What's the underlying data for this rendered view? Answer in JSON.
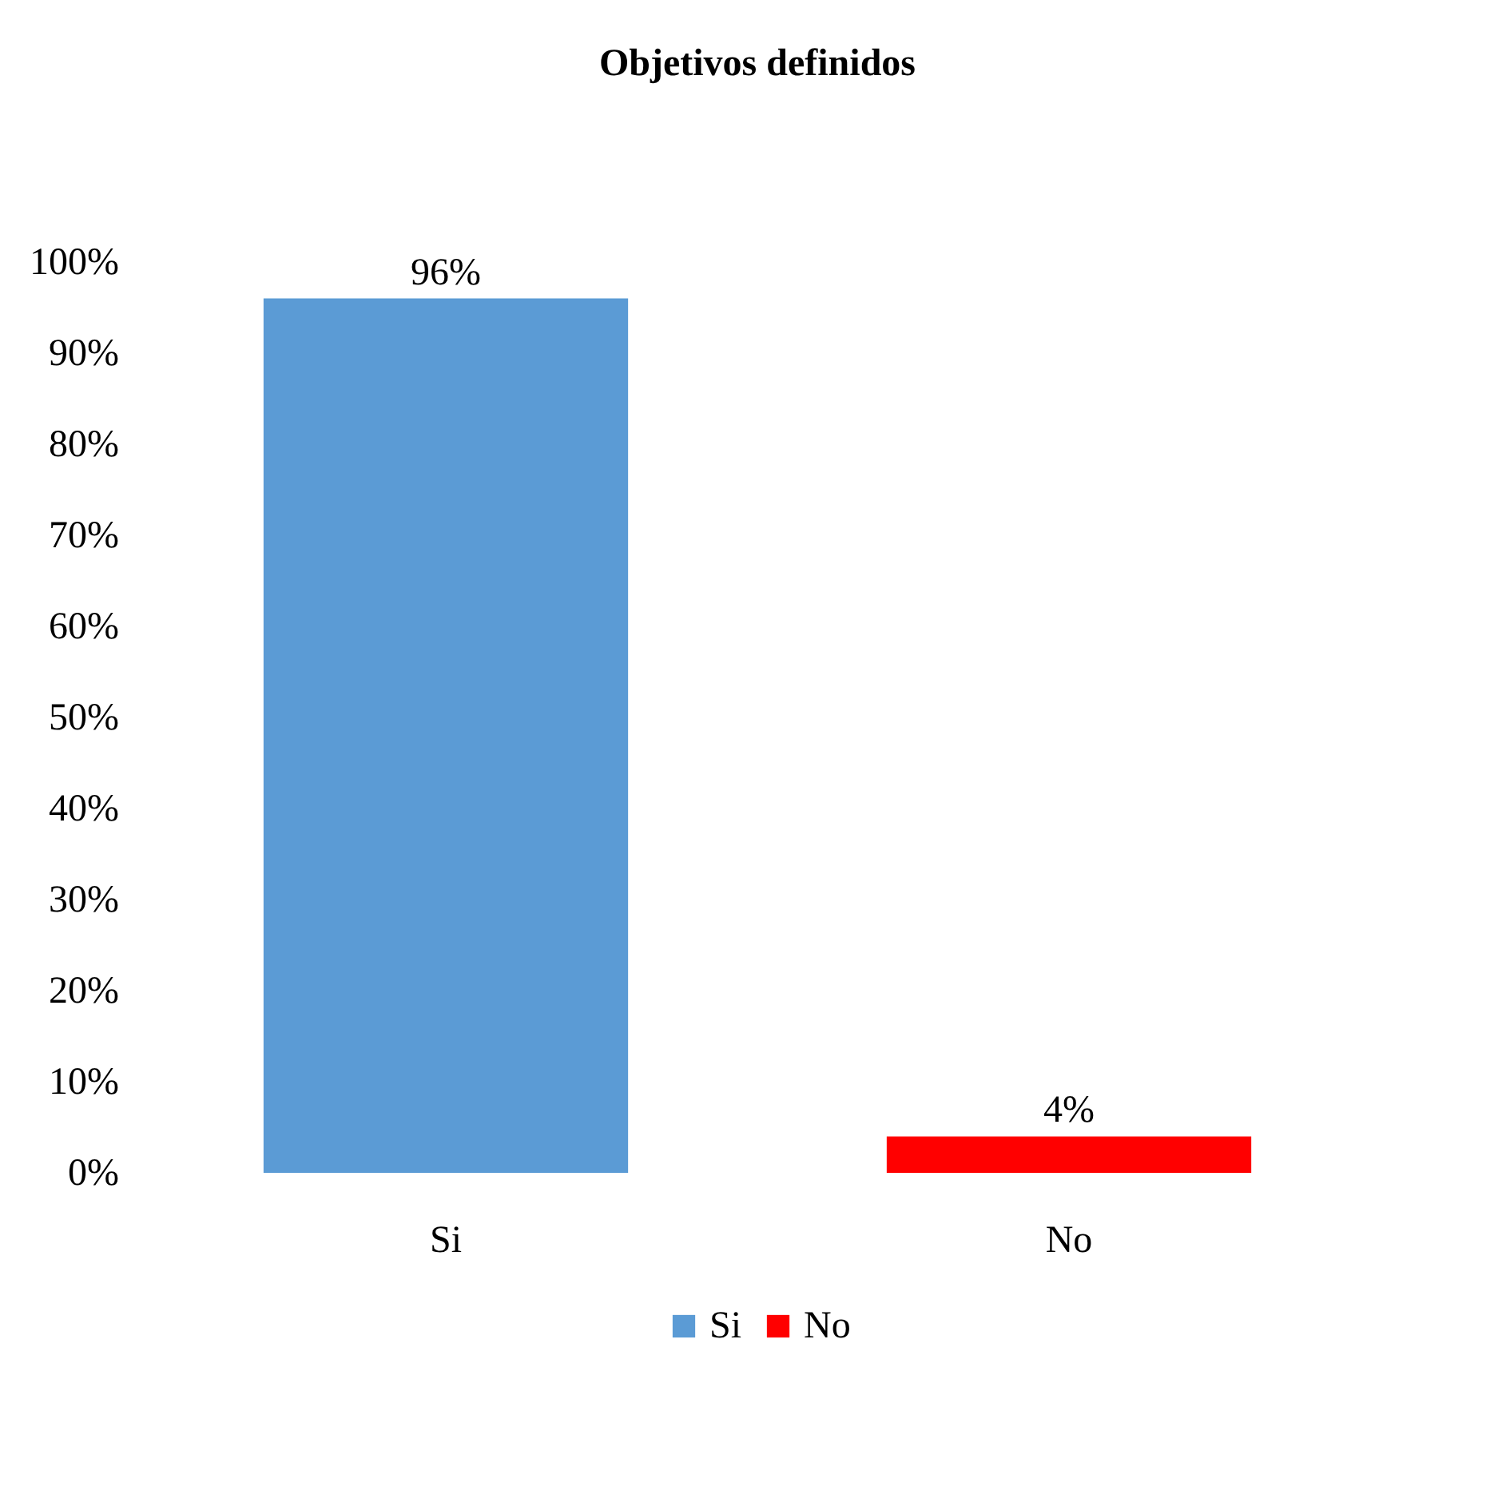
{
  "chart_data": {
    "type": "bar",
    "title": "Objetivos definidos",
    "categories": [
      "Si",
      "No"
    ],
    "series": [
      {
        "name": "Si",
        "color": "#5b9bd5",
        "values": [
          96,
          null
        ],
        "value_labels": [
          "96%",
          null
        ]
      },
      {
        "name": "No",
        "color": "#ff0000",
        "values": [
          null,
          4
        ],
        "value_labels": [
          null,
          "4%"
        ]
      }
    ],
    "ylim": [
      0,
      100
    ],
    "yticks": [
      {
        "value": 0,
        "label": "0%"
      },
      {
        "value": 10,
        "label": "10%"
      },
      {
        "value": 20,
        "label": "20%"
      },
      {
        "value": 30,
        "label": "30%"
      },
      {
        "value": 40,
        "label": "40%"
      },
      {
        "value": 50,
        "label": "50%"
      },
      {
        "value": 60,
        "label": "60%"
      },
      {
        "value": 70,
        "label": "70%"
      },
      {
        "value": 80,
        "label": "80%"
      },
      {
        "value": 90,
        "label": "90%"
      },
      {
        "value": 100,
        "label": "100%"
      }
    ],
    "grid": false,
    "legend": "bottom"
  }
}
